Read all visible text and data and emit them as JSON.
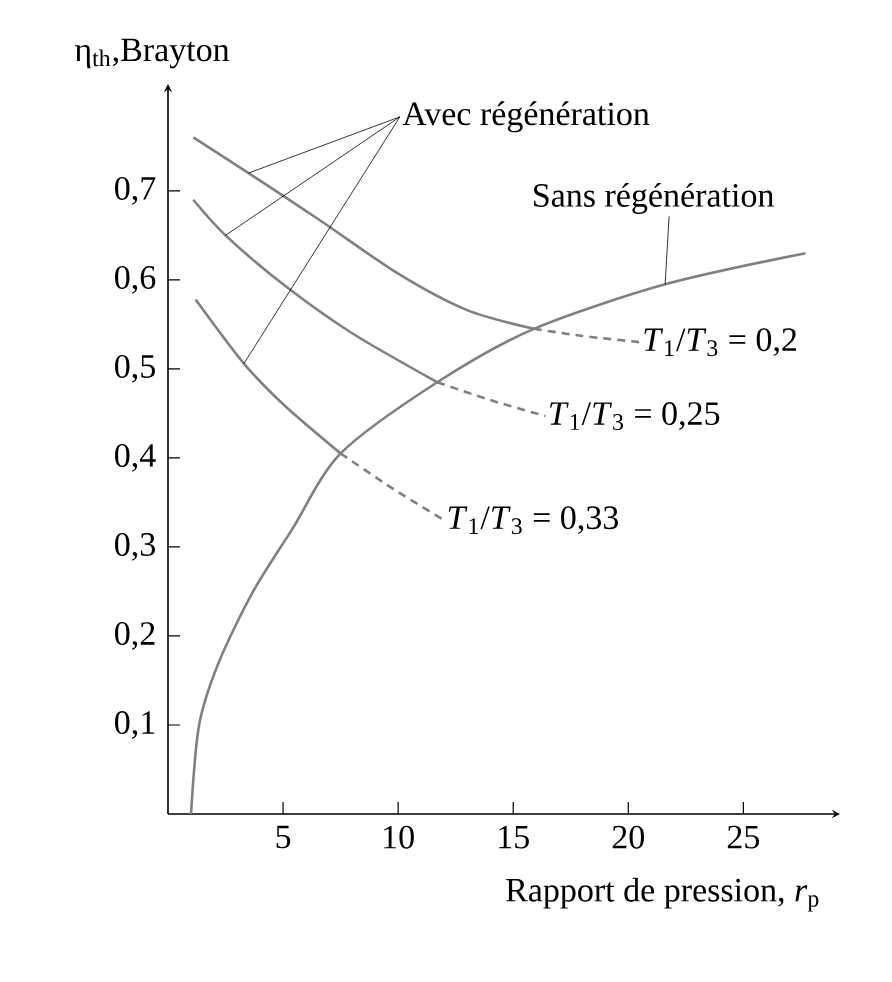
{
  "chart_data": {
    "type": "line",
    "xlabel": "Rapport de pression, *r*$_{p}$",
    "ylabel": "η$_{th}$,Brayton",
    "xlim": [
      0,
      29.2
    ],
    "ylim": [
      0,
      0.82
    ],
    "xticks": [
      5,
      10,
      15,
      20,
      25
    ],
    "yticks": [
      {
        "value": 0.1,
        "label": "0,1"
      },
      {
        "value": 0.2,
        "label": "0,2"
      },
      {
        "value": 0.3,
        "label": "0,3"
      },
      {
        "value": 0.4,
        "label": "0,4"
      },
      {
        "value": 0.5,
        "label": "0,5"
      },
      {
        "value": 0.6,
        "label": "0,6"
      },
      {
        "value": 0.7,
        "label": "0,7"
      }
    ],
    "grid": false,
    "marker": "none",
    "series": [
      {
        "color": "#808080",
        "line_style": "solid",
        "x": [
          1,
          1.35,
          2.2,
          3.7,
          5.4,
          7.5,
          11.7,
          15.9,
          21.6,
          27.7
        ],
        "values": [
          0,
          0.1,
          0.17,
          0.25,
          0.32,
          0.405,
          0.485,
          0.545,
          0.595,
          0.63
        ]
      },
      {
        "color": "#808080",
        "line_style": "solid",
        "x": [
          1.1,
          3.5,
          6.6,
          10,
          13,
          15.9
        ],
        "values": [
          0.76,
          0.72,
          0.667,
          0.607,
          0.566,
          0.545
        ]
      },
      {
        "color": "#808080",
        "line_style": "solid",
        "x": [
          1.1,
          2.5,
          5.1,
          8,
          11.7
        ],
        "values": [
          0.69,
          0.65,
          0.593,
          0.54,
          0.485
        ]
      },
      {
        "color": "#808080",
        "line_style": "solid",
        "x": [
          1.2,
          3.3,
          5.1,
          7.5
        ],
        "values": [
          0.578,
          0.506,
          0.458,
          0.405
        ]
      },
      {
        "color": "#808080",
        "line_style": "dashed",
        "x": [
          15.9,
          18,
          20.5
        ],
        "values": [
          0.545,
          0.537,
          0.53
        ]
      },
      {
        "color": "#808080",
        "line_style": "dashed",
        "x": [
          11.7,
          14,
          16.4
        ],
        "values": [
          0.485,
          0.465,
          0.447
        ]
      },
      {
        "color": "#808080",
        "line_style": "dashed",
        "x": [
          7.5,
          9.8,
          12
        ],
        "values": [
          0.405,
          0.365,
          0.33
        ]
      }
    ],
    "annotations": [
      {
        "text": "Avec régénération",
        "x": 3.5,
        "y": 0.72
      },
      {
        "text": "Sans régénération",
        "x": 21.6,
        "y": 0.595
      },
      {
        "text": "*T*$_{1}$/*T*$_{3}$ = 0,2",
        "x": 20.5,
        "y": 0.53
      },
      {
        "text": "*T*$_{1}$/*T*$_{3}$ = 0,25",
        "x": 16.4,
        "y": 0.447
      },
      {
        "text": "*T*$_{1}$/*T*$_{3}$ = 0,33",
        "x": 12,
        "y": 0.33
      }
    ]
  }
}
